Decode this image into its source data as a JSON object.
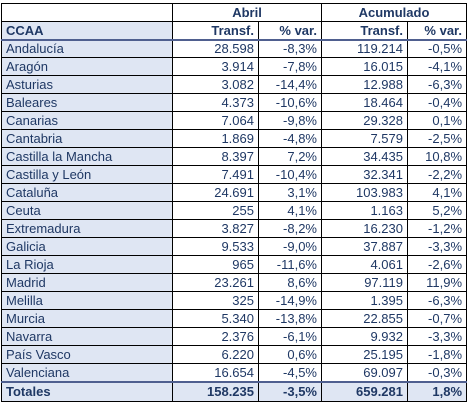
{
  "header": {
    "group_abril": "Abril",
    "group_acumulado": "Acumulado",
    "col_ccaa": "CCAA",
    "col_transf_abril": "Transf.",
    "col_var_abril": "% var.",
    "col_transf_acum": "Transf.",
    "col_var_acum": "% var."
  },
  "rows": [
    {
      "ccaa": "Andalucía",
      "transf_abril": "28.598",
      "var_abril": "-8,3%",
      "transf_acum": "119.214",
      "var_acum": "-0,5%"
    },
    {
      "ccaa": "Aragón",
      "transf_abril": "3.914",
      "var_abril": "-7,8%",
      "transf_acum": "16.015",
      "var_acum": "-4,1%"
    },
    {
      "ccaa": "Asturias",
      "transf_abril": "3.082",
      "var_abril": "-14,4%",
      "transf_acum": "12.988",
      "var_acum": "-6,3%"
    },
    {
      "ccaa": "Baleares",
      "transf_abril": "4.373",
      "var_abril": "-10,6%",
      "transf_acum": "18.464",
      "var_acum": "-0,4%"
    },
    {
      "ccaa": "Canarias",
      "transf_abril": "7.064",
      "var_abril": "-9,8%",
      "transf_acum": "29.328",
      "var_acum": "0,1%"
    },
    {
      "ccaa": "Cantabria",
      "transf_abril": "1.869",
      "var_abril": "-4,8%",
      "transf_acum": "7.579",
      "var_acum": "-2,5%"
    },
    {
      "ccaa": "Castilla la Mancha",
      "transf_abril": "8.397",
      "var_abril": "7,2%",
      "transf_acum": "34.435",
      "var_acum": "10,8%"
    },
    {
      "ccaa": "Castilla y León",
      "transf_abril": "7.491",
      "var_abril": "-10,4%",
      "transf_acum": "32.341",
      "var_acum": "-2,2%"
    },
    {
      "ccaa": "Cataluña",
      "transf_abril": "24.691",
      "var_abril": "3,1%",
      "transf_acum": "103.983",
      "var_acum": "4,1%"
    },
    {
      "ccaa": "Ceuta",
      "transf_abril": "255",
      "var_abril": "4,1%",
      "transf_acum": "1.163",
      "var_acum": "5,2%"
    },
    {
      "ccaa": "Extremadura",
      "transf_abril": "3.827",
      "var_abril": "-8,2%",
      "transf_acum": "16.230",
      "var_acum": "-1,2%"
    },
    {
      "ccaa": "Galicia",
      "transf_abril": "9.533",
      "var_abril": "-9,0%",
      "transf_acum": "37.887",
      "var_acum": "-3,3%"
    },
    {
      "ccaa": "La Rioja",
      "transf_abril": "965",
      "var_abril": "-11,6%",
      "transf_acum": "4.061",
      "var_acum": "-2,6%"
    },
    {
      "ccaa": "Madrid",
      "transf_abril": "23.261",
      "var_abril": "8,6%",
      "transf_acum": "97.119",
      "var_acum": "11,9%"
    },
    {
      "ccaa": "Melilla",
      "transf_abril": "325",
      "var_abril": "-14,9%",
      "transf_acum": "1.395",
      "var_acum": "-6,3%"
    },
    {
      "ccaa": "Murcia",
      "transf_abril": "5.340",
      "var_abril": "-13,8%",
      "transf_acum": "22.855",
      "var_acum": "-0,7%"
    },
    {
      "ccaa": "Navarra",
      "transf_abril": "2.376",
      "var_abril": "-6,1%",
      "transf_acum": "9.932",
      "var_acum": "-3,3%"
    },
    {
      "ccaa": "País Vasco",
      "transf_abril": "6.220",
      "var_abril": "0,6%",
      "transf_acum": "25.195",
      "var_acum": "-1,8%"
    },
    {
      "ccaa": "Valenciana",
      "transf_abril": "16.654",
      "var_abril": "-4,5%",
      "transf_acum": "69.097",
      "var_acum": "-0,3%"
    }
  ],
  "totals": {
    "label": "Totales",
    "transf_abril": "158.235",
    "var_abril": "-3,5%",
    "transf_acum": "659.281",
    "var_acum": "1,8%"
  },
  "colors": {
    "label_bg": "#dfe6f3",
    "text": "#1f3864",
    "border": "#000000"
  }
}
